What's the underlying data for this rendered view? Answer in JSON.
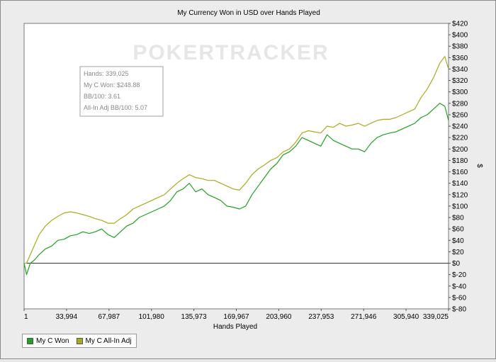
{
  "chart_data": {
    "type": "line",
    "title": "My Currency Won in USD over Hands Played",
    "xlabel": "Hands Played",
    "ylabel": "$",
    "watermark": "POKERTRACKER",
    "xlim": [
      1,
      339025
    ],
    "ylim": [
      -80,
      420
    ],
    "x_ticks": [
      "1",
      "33,994",
      "67,987",
      "101,980",
      "135,973",
      "169,967",
      "203,960",
      "237,953",
      "271,946",
      "305,940",
      "339,025"
    ],
    "y_ticks": [
      "$420",
      "$400",
      "$380",
      "$360",
      "$340",
      "$320",
      "$300",
      "$280",
      "$260",
      "$240",
      "$220",
      "$200",
      "$180",
      "$160",
      "$140",
      "$120",
      "$100",
      "$80",
      "$60",
      "$40",
      "$20",
      "$0",
      "$-20",
      "$-40",
      "$-60",
      "$-80"
    ],
    "grid": false,
    "legend_position": "bottom-left",
    "colors": {
      "won": "#22a022",
      "allin": "#aaaa22",
      "zero_line": "#333333"
    },
    "info_box": {
      "hands": "Hands: 339,025",
      "won": "My C Won: $248.88",
      "bb100": "BB/100: 3.61",
      "allin_bb100": "All-In Adj BB/100: 5.07"
    },
    "series": [
      {
        "name": "My C Won",
        "x": [
          1,
          2000,
          5000,
          8000,
          12000,
          17000,
          22000,
          27000,
          32000,
          37000,
          42000,
          47000,
          52000,
          57000,
          62000,
          67000,
          72000,
          77000,
          82000,
          87000,
          92000,
          97000,
          102000,
          107000,
          112000,
          117000,
          122000,
          127000,
          132000,
          137000,
          142000,
          147000,
          152000,
          157000,
          162000,
          167000,
          172000,
          177000,
          182000,
          187000,
          192000,
          197000,
          202000,
          207000,
          212000,
          217000,
          222000,
          227000,
          232000,
          237000,
          242000,
          247000,
          252000,
          257000,
          262000,
          267000,
          272000,
          277000,
          282000,
          287000,
          292000,
          297000,
          302000,
          307000,
          312000,
          317000,
          322000,
          327000,
          332000,
          336000,
          339025
        ],
        "y": [
          0,
          -20,
          0,
          5,
          15,
          25,
          30,
          40,
          42,
          48,
          50,
          55,
          52,
          55,
          60,
          50,
          45,
          55,
          65,
          70,
          80,
          85,
          90,
          95,
          100,
          110,
          125,
          130,
          140,
          125,
          130,
          120,
          115,
          110,
          100,
          98,
          95,
          100,
          120,
          135,
          150,
          165,
          175,
          190,
          195,
          205,
          220,
          215,
          210,
          205,
          225,
          215,
          210,
          205,
          200,
          200,
          195,
          210,
          220,
          225,
          228,
          230,
          235,
          240,
          245,
          255,
          260,
          270,
          280,
          275,
          250
        ]
      },
      {
        "name": "My C All-In Adj",
        "x": [
          1,
          2000,
          5000,
          8000,
          12000,
          17000,
          22000,
          27000,
          32000,
          37000,
          42000,
          47000,
          52000,
          57000,
          62000,
          67000,
          72000,
          77000,
          82000,
          87000,
          92000,
          97000,
          102000,
          107000,
          112000,
          117000,
          122000,
          127000,
          132000,
          137000,
          142000,
          147000,
          152000,
          157000,
          162000,
          167000,
          172000,
          177000,
          182000,
          187000,
          192000,
          197000,
          202000,
          207000,
          212000,
          217000,
          222000,
          227000,
          232000,
          237000,
          242000,
          247000,
          252000,
          257000,
          262000,
          267000,
          272000,
          277000,
          282000,
          287000,
          292000,
          297000,
          302000,
          307000,
          312000,
          317000,
          322000,
          327000,
          332000,
          336000,
          339025
        ],
        "y": [
          0,
          0,
          15,
          30,
          50,
          65,
          75,
          82,
          88,
          90,
          88,
          85,
          82,
          78,
          75,
          70,
          70,
          78,
          85,
          95,
          100,
          105,
          110,
          115,
          120,
          130,
          140,
          148,
          155,
          150,
          148,
          145,
          145,
          140,
          135,
          130,
          128,
          140,
          155,
          165,
          172,
          180,
          185,
          195,
          200,
          212,
          228,
          232,
          230,
          228,
          240,
          238,
          245,
          240,
          242,
          245,
          240,
          245,
          250,
          252,
          252,
          255,
          260,
          265,
          270,
          290,
          305,
          325,
          350,
          362,
          340
        ]
      }
    ]
  }
}
